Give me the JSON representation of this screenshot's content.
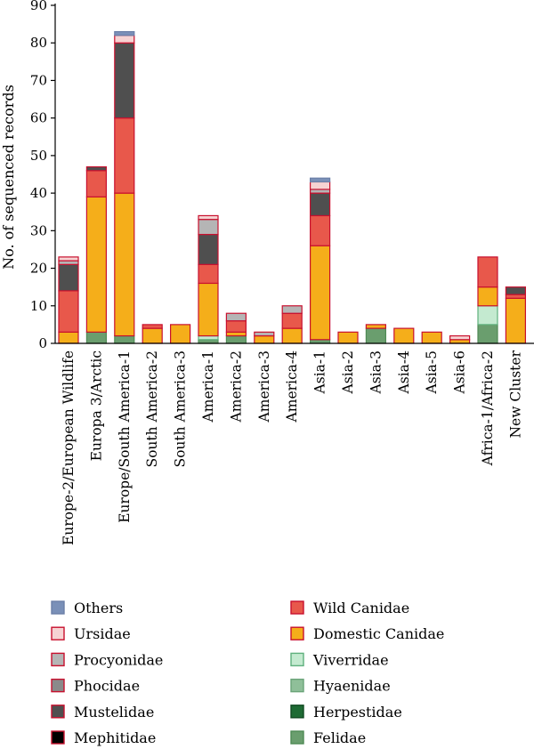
{
  "chart_data": {
    "type": "bar",
    "stacked": true,
    "title": "",
    "xlabel": "",
    "ylabel": "No. of sequenced records",
    "ylim": [
      0,
      90
    ],
    "yticks": [
      0,
      10,
      20,
      30,
      40,
      50,
      60,
      70,
      80,
      90
    ],
    "grid": false,
    "legend_position": "bottom",
    "categories": [
      "Europe-2/European Wildlife",
      "Europa 3/Arctic",
      "Europe/South America-1",
      "South America-2",
      "South America-3",
      "America-1",
      "America-2",
      "America-3",
      "America-4",
      "Asia-1",
      "Asia-2",
      "Asia-3",
      "Asia-4",
      "Asia-5",
      "Asia-6",
      "Africa-1/Africa-2",
      "New Cluster"
    ],
    "series": [
      {
        "name": "Felidae",
        "color": "#6a9e6e",
        "edge": "#4f8a55",
        "values": [
          0,
          3,
          2,
          0,
          0,
          1,
          2,
          0,
          0,
          1,
          0,
          4,
          0,
          0,
          0,
          5,
          0
        ]
      },
      {
        "name": "Herpestidae",
        "color": "#1e6b34",
        "edge": "#114a22",
        "values": [
          0,
          0,
          0,
          0,
          0,
          0,
          0,
          0,
          0,
          0,
          0,
          0,
          0,
          0,
          0,
          0,
          0
        ]
      },
      {
        "name": "Hyaenidae",
        "color": "#8fbf99",
        "edge": "#6aa479",
        "values": [
          0,
          0,
          0,
          0,
          0,
          0,
          0,
          0,
          0,
          0,
          0,
          0,
          0,
          0,
          0,
          0,
          0
        ]
      },
      {
        "name": "Viverridae",
        "color": "#c4ead0",
        "edge": "#5fb07d",
        "values": [
          0,
          0,
          0,
          0,
          0,
          1,
          0,
          0,
          0,
          0,
          0,
          0,
          0,
          0,
          0,
          5,
          0
        ]
      },
      {
        "name": "Domestic Canidae",
        "color": "#f5ae1a",
        "edge": "#c8102e",
        "values": [
          3,
          36,
          38,
          4,
          5,
          14,
          1,
          2,
          4,
          25,
          3,
          1,
          4,
          3,
          1,
          5,
          12
        ]
      },
      {
        "name": "Wild Canidae",
        "color": "#e8584b",
        "edge": "#c8102e",
        "values": [
          11,
          7,
          20,
          1,
          0,
          5,
          3,
          0,
          4,
          8,
          0,
          0,
          0,
          0,
          0,
          8,
          1
        ]
      },
      {
        "name": "Mephitidae",
        "color": "#000000",
        "edge": "#c8102e",
        "values": [
          0,
          0,
          0,
          0,
          0,
          0,
          0,
          0,
          0,
          0,
          0,
          0,
          0,
          0,
          0,
          0,
          0
        ]
      },
      {
        "name": "Mustelidae",
        "color": "#4f4f4f",
        "edge": "#c8102e",
        "values": [
          7,
          1,
          20,
          0,
          0,
          8,
          0,
          0,
          0,
          6,
          0,
          0,
          0,
          0,
          0,
          0,
          2
        ]
      },
      {
        "name": "Phocidae",
        "color": "#8a8a8a",
        "edge": "#c8102e",
        "values": [
          0,
          0,
          0,
          0,
          0,
          0,
          0,
          0,
          0,
          0,
          0,
          0,
          0,
          0,
          0,
          0,
          0
        ]
      },
      {
        "name": "Procyonidae",
        "color": "#b5b5b5",
        "edge": "#c8102e",
        "values": [
          1,
          0,
          0,
          0,
          0,
          4,
          2,
          1,
          2,
          1,
          0,
          0,
          0,
          0,
          0,
          0,
          0
        ]
      },
      {
        "name": "Ursidae",
        "color": "#f6d3d3",
        "edge": "#c8102e",
        "values": [
          1,
          0,
          2,
          0,
          0,
          1,
          0,
          0,
          0,
          2,
          0,
          0,
          0,
          0,
          1,
          0,
          0
        ]
      },
      {
        "name": "Others",
        "color": "#7a90b8",
        "edge": "#6b7fa8",
        "values": [
          0,
          0,
          1,
          0,
          0,
          0,
          0,
          0,
          0,
          1,
          0,
          0,
          0,
          0,
          0,
          0,
          0
        ]
      }
    ],
    "legend_columns": [
      [
        "Others",
        "Ursidae",
        "Procyonidae",
        "Phocidae",
        "Mustelidae",
        "Mephitidae"
      ],
      [
        "Wild Canidae",
        "Domestic Canidae",
        "Viverridae",
        "Hyaenidae",
        "Herpestidae",
        "Felidae"
      ]
    ]
  }
}
